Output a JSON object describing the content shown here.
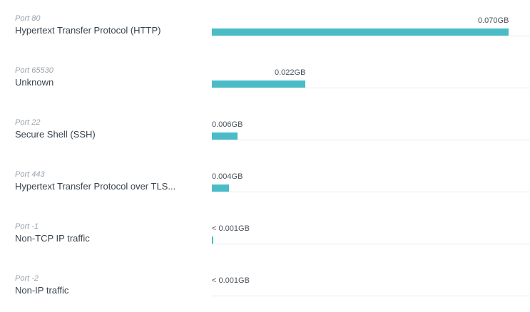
{
  "port_traffic": {
    "rows": [
      {
        "port": "Port 80",
        "protocol": "Hypertext Transfer Protocol (HTTP)",
        "value_label": "0.070GB",
        "value_gb": 0.07
      },
      {
        "port": "Port 65530",
        "protocol": "Unknown",
        "value_label": "0.022GB",
        "value_gb": 0.022
      },
      {
        "port": "Port 22",
        "protocol": "Secure Shell (SSH)",
        "value_label": "0.006GB",
        "value_gb": 0.006
      },
      {
        "port": "Port 443",
        "protocol": "Hypertext Transfer Protocol over TLS...",
        "value_label": "0.004GB",
        "value_gb": 0.004
      },
      {
        "port": "Port -1",
        "protocol": "Non-TCP IP traffic",
        "value_label": "< 0.001GB",
        "value_gb": 0.0003
      },
      {
        "port": "Port -2",
        "protocol": "Non-IP traffic",
        "value_label": "< 0.001GB",
        "value_gb": 0
      }
    ],
    "max_gb": 0.075,
    "bar_color": "#49bcc7",
    "baseline_color": "#e7eaec"
  }
}
